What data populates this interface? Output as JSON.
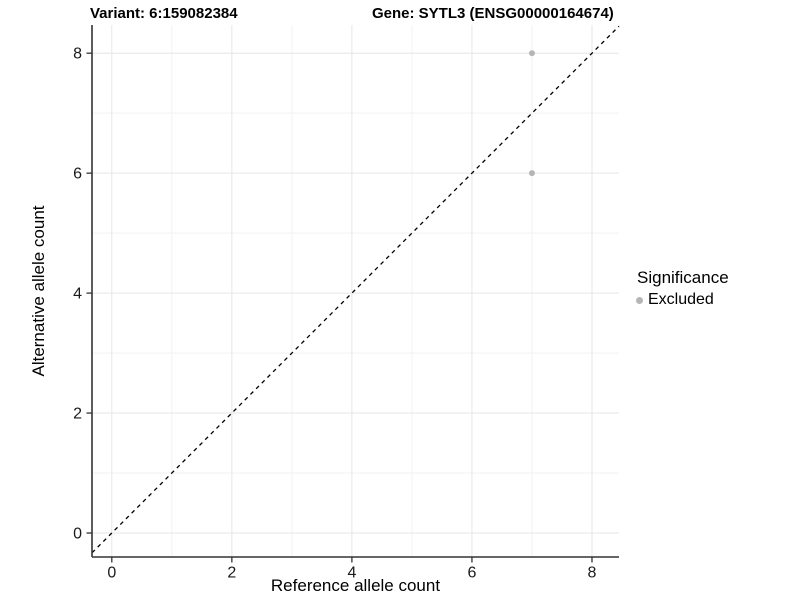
{
  "titles": {
    "variant": "Variant: 6:159082384",
    "gene": "Gene: SYTL3 (ENSG00000164674)"
  },
  "chart_data": {
    "type": "scatter",
    "title_left": "Variant: 6:159082384",
    "title_right": "Gene: SYTL3 (ENSG00000164674)",
    "xlabel": "Reference allele count",
    "ylabel": "Alternative allele count",
    "xlim": [
      -0.33,
      8.45
    ],
    "ylim": [
      -0.4,
      8.47
    ],
    "x_major_ticks": [
      0,
      2,
      4,
      6,
      8
    ],
    "y_major_ticks": [
      0,
      2,
      4,
      6,
      8
    ],
    "x_minor_ticks": [
      1,
      3,
      5,
      7
    ],
    "y_minor_ticks": [
      1,
      3,
      5,
      7
    ],
    "grid": true,
    "points": [
      {
        "x": 7,
        "y": 8,
        "significance": "Excluded"
      },
      {
        "x": 7,
        "y": 6,
        "significance": "Excluded"
      }
    ],
    "reference_line": {
      "equation": "y = x",
      "style": "dashed",
      "color": "#000000"
    },
    "legend": {
      "title": "Significance",
      "position": "right",
      "entries": [
        {
          "label": "Excluded",
          "color": "#b5b5b5"
        }
      ]
    },
    "colors": {
      "point_excluded": "#b5b5b5",
      "grid_major": "#e6e6e6",
      "grid_minor": "#f2f2f2",
      "axis_line": "#333333",
      "tick_label": "#1a1a1a"
    }
  }
}
